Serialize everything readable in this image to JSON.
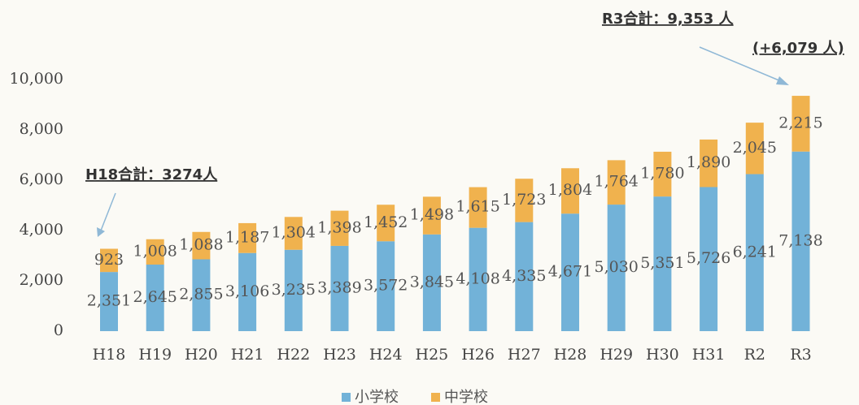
{
  "chart_data": {
    "type": "bar",
    "stacked": true,
    "categories": [
      "H18",
      "H19",
      "H20",
      "H21",
      "H22",
      "H23",
      "H24",
      "H25",
      "H26",
      "H27",
      "H28",
      "H29",
      "H30",
      "H31",
      "R2",
      "R3"
    ],
    "series": [
      {
        "name": "小学校",
        "color": "#72b2d8",
        "values": [
          2351,
          2645,
          2855,
          3106,
          3235,
          3389,
          3572,
          3845,
          4108,
          4335,
          4671,
          5030,
          5351,
          5726,
          6241,
          7138
        ],
        "value_labels": [
          "2,351",
          "2,645",
          "2,855",
          "3,106",
          "3,235",
          "3,389",
          "3,572",
          "3,845",
          "4,108",
          "4,335",
          "4,671",
          "5,030",
          "5,351",
          "5,726",
          "6,241",
          "7,138"
        ]
      },
      {
        "name": "中学校",
        "color": "#f0b24e",
        "values": [
          923,
          1008,
          1088,
          1187,
          1304,
          1398,
          1452,
          1498,
          1615,
          1723,
          1804,
          1764,
          1780,
          1890,
          2045,
          2215
        ],
        "value_labels": [
          "923",
          "1,008",
          "1,088",
          "1,187",
          "1,304",
          "1,398",
          "1,452",
          "1,498",
          "1,615",
          "1,723",
          "1,804",
          "1,764",
          "1,780",
          "1,890",
          "2,045",
          "2,215"
        ]
      }
    ],
    "ylim": [
      0,
      10000
    ],
    "yticks": [
      0,
      {
        "value": 2000,
        "label": "2,000"
      },
      {
        "value": 4000,
        "label": "4,000"
      },
      {
        "value": 6000,
        "label": "6,000"
      },
      {
        "value": 8000,
        "label": "8,000"
      },
      {
        "value": 10000,
        "label": "10,000"
      }
    ],
    "annotations": [
      "H18合計：3274人",
      "R3合計：9,353 人",
      "(+6,079 人)"
    ],
    "legend": "bottom"
  }
}
